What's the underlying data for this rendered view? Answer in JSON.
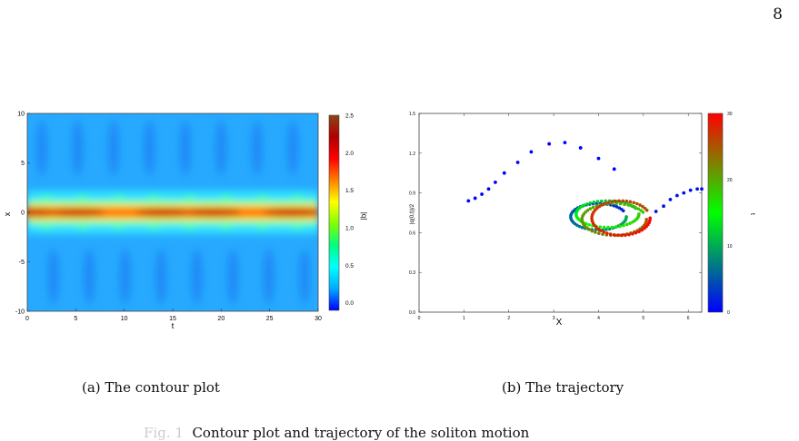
{
  "page": {
    "number": "8"
  },
  "figures": {
    "a": {
      "subcaption": "(a)  The contour plot"
    },
    "b": {
      "subcaption": "(b)  The trajectory"
    },
    "caption": "Contour plot and trajectory of the soliton motion"
  },
  "chart_data": [
    {
      "type": "heatmap",
      "xlabel": "t",
      "ylabel": "x",
      "xlim": [
        0,
        30
      ],
      "ylim": [
        -10,
        10
      ],
      "x_ticks": [
        "0",
        "5",
        "10",
        "15",
        "20",
        "25",
        "30"
      ],
      "y_ticks": [
        "-10",
        "-5",
        "0",
        "5",
        "10"
      ],
      "colorbar": {
        "label": "|q|",
        "range": [
          -0.1,
          2.5
        ],
        "ticks": [
          "0.0",
          "0.5",
          "1.0",
          "1.5",
          "2.0",
          "2.5"
        ]
      },
      "colormap": [
        "#0000ff",
        "#00aaff",
        "#00ffff",
        "#00ff80",
        "#80ff00",
        "#ffff00",
        "#ff8000",
        "#ff0000",
        "#b00000",
        "#8b4513"
      ]
    },
    {
      "type": "scatter",
      "xlabel": "X",
      "ylabel": "|q(0,t)|/2",
      "xlim": [
        0,
        6.3
      ],
      "ylim": [
        0,
        1.5
      ],
      "x_ticks": [
        "0",
        "1",
        "2",
        "3",
        "4",
        "5",
        "6"
      ],
      "y_ticks": [
        "0.0",
        "0.3",
        "0.6",
        "0.9",
        "1.2",
        "1.5"
      ],
      "colorbar": {
        "label": "t",
        "range": [
          0,
          30
        ],
        "ticks": [
          "0",
          "10",
          "20",
          "30"
        ]
      },
      "colormap": [
        "#0000ff",
        "#00ff00",
        "#ff0000"
      ],
      "series": [
        {
          "points": [
            [
              1.1,
              0.84
            ],
            [
              1.25,
              0.86
            ],
            [
              1.4,
              0.89
            ],
            [
              1.55,
              0.93
            ],
            [
              1.7,
              0.98
            ],
            [
              1.9,
              1.05
            ],
            [
              2.2,
              1.13
            ],
            [
              2.5,
              1.21
            ],
            [
              2.9,
              1.27
            ],
            [
              3.25,
              1.28
            ],
            [
              3.6,
              1.24
            ],
            [
              4.0,
              1.16
            ],
            [
              4.35,
              1.08
            ]
          ],
          "t": [
            0,
            0,
            0,
            0,
            0,
            0,
            0,
            0,
            0,
            0,
            0,
            0,
            0
          ]
        },
        {
          "points": [
            [
              5.28,
              0.76
            ],
            [
              5.45,
              0.8
            ],
            [
              5.6,
              0.85
            ],
            [
              5.75,
              0.88
            ],
            [
              5.9,
              0.9
            ],
            [
              6.05,
              0.92
            ],
            [
              6.2,
              0.93
            ],
            [
              6.3,
              0.93
            ]
          ],
          "t": [
            1,
            1,
            1,
            1,
            1,
            1,
            1,
            1
          ]
        }
      ],
      "loops": [
        {
          "cx": 4.0,
          "cy": 0.72,
          "rx": 0.62,
          "ry": 0.1,
          "t0": 2,
          "t1": 10
        },
        {
          "cx": 4.2,
          "cy": 0.74,
          "rx": 0.7,
          "ry": 0.1,
          "t0": 10,
          "t1": 18
        },
        {
          "cx": 4.35,
          "cy": 0.7,
          "rx": 0.72,
          "ry": 0.12,
          "t0": 18,
          "t1": 25
        },
        {
          "cx": 4.5,
          "cy": 0.71,
          "rx": 0.65,
          "ry": 0.13,
          "t0": 25,
          "t1": 30
        }
      ]
    }
  ]
}
